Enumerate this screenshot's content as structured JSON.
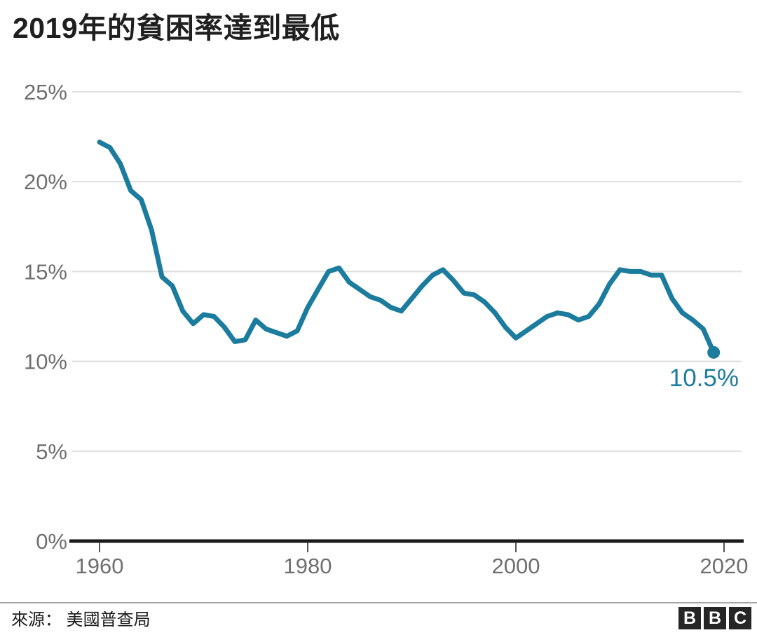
{
  "title": "2019年的貧困率達到最低",
  "source": {
    "label": "來源： 美國普查局"
  },
  "logo": {
    "letters": [
      "B",
      "B",
      "C"
    ]
  },
  "colors": {
    "line": "#1C7C9D",
    "marker": "#1C7C9D",
    "annotation": "#1C7C9D",
    "title_text": "#1f1f1f",
    "axis_label": "#6f6f6f",
    "gridline": "#dedede",
    "axis_line": "#1a1a1a",
    "tick": "#555555",
    "divider": "#a6a6a6",
    "logo_bg": "#262626",
    "logo_text": "#ffffff",
    "background": "#ffffff"
  },
  "chart_data": {
    "type": "line",
    "title": "2019年的貧困率達到最低",
    "xlabel": "",
    "ylabel": "",
    "grid": "horizontal",
    "legend": "none",
    "ylim": [
      0,
      25
    ],
    "xlim": [
      1957,
      2022
    ],
    "x": [
      1960,
      1961,
      1962,
      1963,
      1964,
      1965,
      1966,
      1967,
      1968,
      1969,
      1970,
      1971,
      1972,
      1973,
      1974,
      1975,
      1976,
      1977,
      1978,
      1979,
      1980,
      1981,
      1982,
      1983,
      1984,
      1985,
      1986,
      1987,
      1988,
      1989,
      1990,
      1991,
      1992,
      1993,
      1994,
      1995,
      1996,
      1997,
      1998,
      1999,
      2000,
      2001,
      2002,
      2003,
      2004,
      2005,
      2006,
      2007,
      2008,
      2009,
      2010,
      2011,
      2012,
      2013,
      2014,
      2015,
      2016,
      2017,
      2018,
      2019
    ],
    "series": [
      {
        "name": "貧困率",
        "values": [
          22.2,
          21.9,
          21.0,
          19.5,
          19.0,
          17.3,
          14.7,
          14.2,
          12.8,
          12.1,
          12.6,
          12.5,
          11.9,
          11.1,
          11.2,
          12.3,
          11.8,
          11.6,
          11.4,
          11.7,
          13.0,
          14.0,
          15.0,
          15.2,
          14.4,
          14.0,
          13.6,
          13.4,
          13.0,
          12.8,
          13.5,
          14.2,
          14.8,
          15.1,
          14.5,
          13.8,
          13.7,
          13.3,
          12.7,
          11.9,
          11.3,
          11.7,
          12.1,
          12.5,
          12.7,
          12.6,
          12.3,
          12.5,
          13.2,
          14.3,
          15.1,
          15.0,
          15.0,
          14.8,
          14.8,
          13.5,
          12.7,
          12.3,
          11.8,
          10.5
        ]
      }
    ],
    "y_ticks": [
      {
        "value": 25,
        "label": "25%"
      },
      {
        "value": 20,
        "label": "20%"
      },
      {
        "value": 15,
        "label": "15%"
      },
      {
        "value": 10,
        "label": "10%"
      },
      {
        "value": 5,
        "label": "5%"
      },
      {
        "value": 0,
        "label": "0%"
      }
    ],
    "x_ticks": [
      {
        "value": 1960,
        "label": "1960"
      },
      {
        "value": 1980,
        "label": "1980"
      },
      {
        "value": 2000,
        "label": "2000"
      },
      {
        "value": 2020,
        "label": "2020"
      }
    ],
    "end_label": "10.5%",
    "end_point": {
      "year": 2019,
      "value": 10.5
    }
  }
}
